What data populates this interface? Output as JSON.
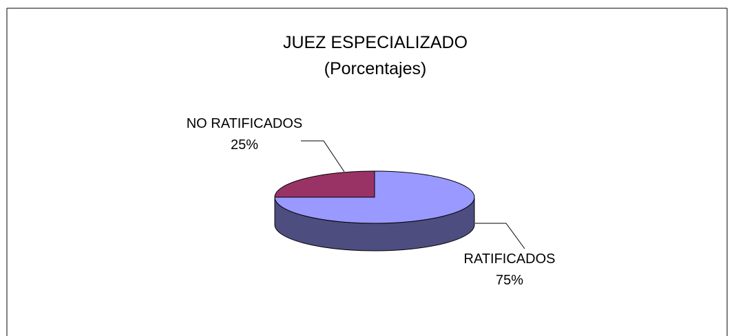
{
  "chart_data": {
    "type": "pie",
    "title": "JUEZ ESPECIALIZADO",
    "subtitle": "(Porcentajes)",
    "categories": [
      "RATIFICADOS",
      "NO RATIFICADOS"
    ],
    "values": [
      75,
      25
    ],
    "value_labels": [
      "75%",
      "25%"
    ],
    "colors": [
      "#9999ff",
      "#993366"
    ],
    "side_colors": [
      "#4d4d80",
      "#4d1a33"
    ],
    "three_d": true
  }
}
